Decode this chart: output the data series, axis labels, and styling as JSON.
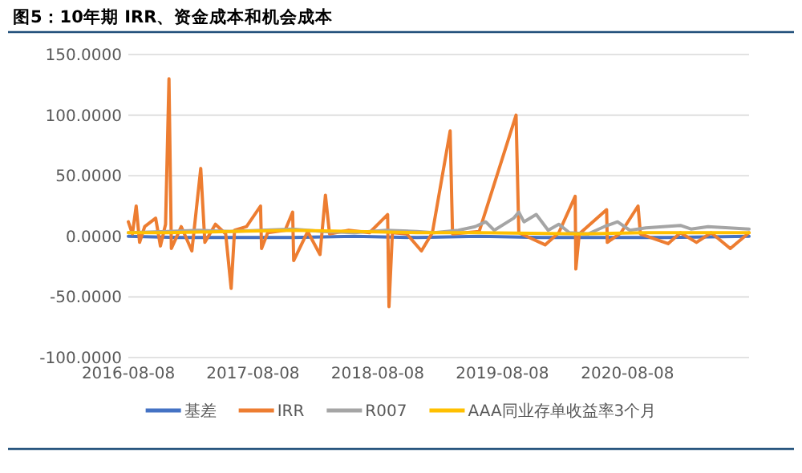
{
  "chart_data": {
    "type": "line",
    "title": "图5：10年期 IRR、资金成本和机会成本",
    "xlim": [
      "2016-08-08",
      "2021-07-30"
    ],
    "xticks": [
      "2016-08-08",
      "2017-08-08",
      "2018-08-08",
      "2019-08-08",
      "2020-08-08"
    ],
    "ylim": [
      -100,
      150
    ],
    "yticks": [
      {
        "value": -100,
        "label": "-100.0000"
      },
      {
        "value": -50,
        "label": "-50.0000"
      },
      {
        "value": 0,
        "label": "0.0000"
      },
      {
        "value": 50,
        "label": "50.0000"
      },
      {
        "value": 100,
        "label": "100.0000"
      },
      {
        "value": 150,
        "label": "150.0000"
      }
    ],
    "grid": "y",
    "legend": "bottom",
    "series": [
      {
        "name": "基差",
        "color": "#4472c4",
        "x": [
          "2016-08-08",
          "2017-01-01",
          "2017-06-01",
          "2017-12-01",
          "2018-06-01",
          "2018-12-01",
          "2019-06-01",
          "2019-12-01",
          "2020-06-01",
          "2020-12-01",
          "2021-07-30"
        ],
        "values": [
          0,
          -1,
          -1,
          -1,
          0,
          -1,
          0,
          -1,
          -1,
          -1,
          0
        ]
      },
      {
        "name": "IRR",
        "color": "#ed7d31",
        "x": [
          "2016-08-08",
          "2016-08-20",
          "2016-08-31",
          "2016-09-10",
          "2016-09-25",
          "2016-10-27",
          "2016-11-10",
          "2016-11-25",
          "2016-12-05",
          "2016-12-12",
          "2017-01-10",
          "2017-02-10",
          "2017-03-08",
          "2017-03-20",
          "2017-04-20",
          "2017-05-20",
          "2017-06-05",
          "2017-06-15",
          "2017-07-20",
          "2017-08-30",
          "2017-09-02",
          "2017-09-20",
          "2017-11-10",
          "2017-12-02",
          "2017-12-05",
          "2018-01-15",
          "2018-02-20",
          "2018-03-08",
          "2018-03-20",
          "2018-05-15",
          "2018-07-15",
          "2018-09-06",
          "2018-09-10",
          "2018-09-20",
          "2018-11-01",
          "2018-12-14",
          "2019-01-15",
          "2019-03-08",
          "2019-03-15",
          "2019-06-01",
          "2019-09-17",
          "2019-09-25",
          "2019-12-11",
          "2020-01-20",
          "2020-03-08",
          "2020-03-10",
          "2020-03-20",
          "2020-06-08",
          "2020-06-10",
          "2020-07-20",
          "2020-09-08",
          "2020-09-15",
          "2020-12-05",
          "2021-01-10",
          "2021-02-26",
          "2021-04-10",
          "2021-06-05",
          "2021-07-30"
        ],
        "values": [
          12,
          2,
          25,
          -5,
          8,
          15,
          -8,
          10,
          130,
          -10,
          8,
          -12,
          56,
          -5,
          10,
          2,
          -43,
          5,
          8,
          25,
          -10,
          3,
          5,
          20,
          -20,
          4,
          -15,
          34,
          2,
          5,
          3,
          18,
          -58,
          3,
          2,
          -12,
          3,
          87,
          2,
          4,
          100,
          3,
          -7,
          3,
          33,
          -27,
          2,
          22,
          -5,
          3,
          25,
          2,
          -6,
          3,
          -5,
          3,
          -10,
          3
        ]
      },
      {
        "name": "R007",
        "color": "#a5a5a5",
        "x": [
          "2016-08-08",
          "2016-12-01",
          "2017-03-01",
          "2017-06-01",
          "2017-09-01",
          "2017-12-01",
          "2018-03-01",
          "2018-06-01",
          "2018-09-01",
          "2018-12-01",
          "2019-01-20",
          "2019-04-01",
          "2019-05-20",
          "2019-06-20",
          "2019-07-15",
          "2019-09-10",
          "2019-09-25",
          "2019-10-10",
          "2019-11-15",
          "2019-12-20",
          "2020-01-20",
          "2020-02-20",
          "2020-04-15",
          "2020-06-01",
          "2020-07-10",
          "2020-08-15",
          "2020-10-01",
          "2020-11-20",
          "2021-01-10",
          "2021-02-10",
          "2021-04-01",
          "2021-06-01",
          "2021-07-30"
        ],
        "values": [
          3,
          4,
          5,
          4,
          5,
          6,
          4,
          3,
          5,
          4,
          3,
          5,
          8,
          12,
          5,
          15,
          20,
          12,
          18,
          5,
          10,
          3,
          2,
          8,
          12,
          5,
          7,
          8,
          9,
          6,
          8,
          7,
          6
        ]
      },
      {
        "name": "AAA同业存单收益率3个月",
        "color": "#ffc000",
        "x": [
          "2016-08-08",
          "2016-12-01",
          "2017-06-01",
          "2017-12-01",
          "2018-06-01",
          "2018-12-01",
          "2019-06-01",
          "2020-04-01",
          "2020-10-01",
          "2021-07-30"
        ],
        "values": [
          3,
          3,
          4,
          5,
          4,
          3,
          3,
          2,
          3,
          3
        ]
      }
    ]
  }
}
